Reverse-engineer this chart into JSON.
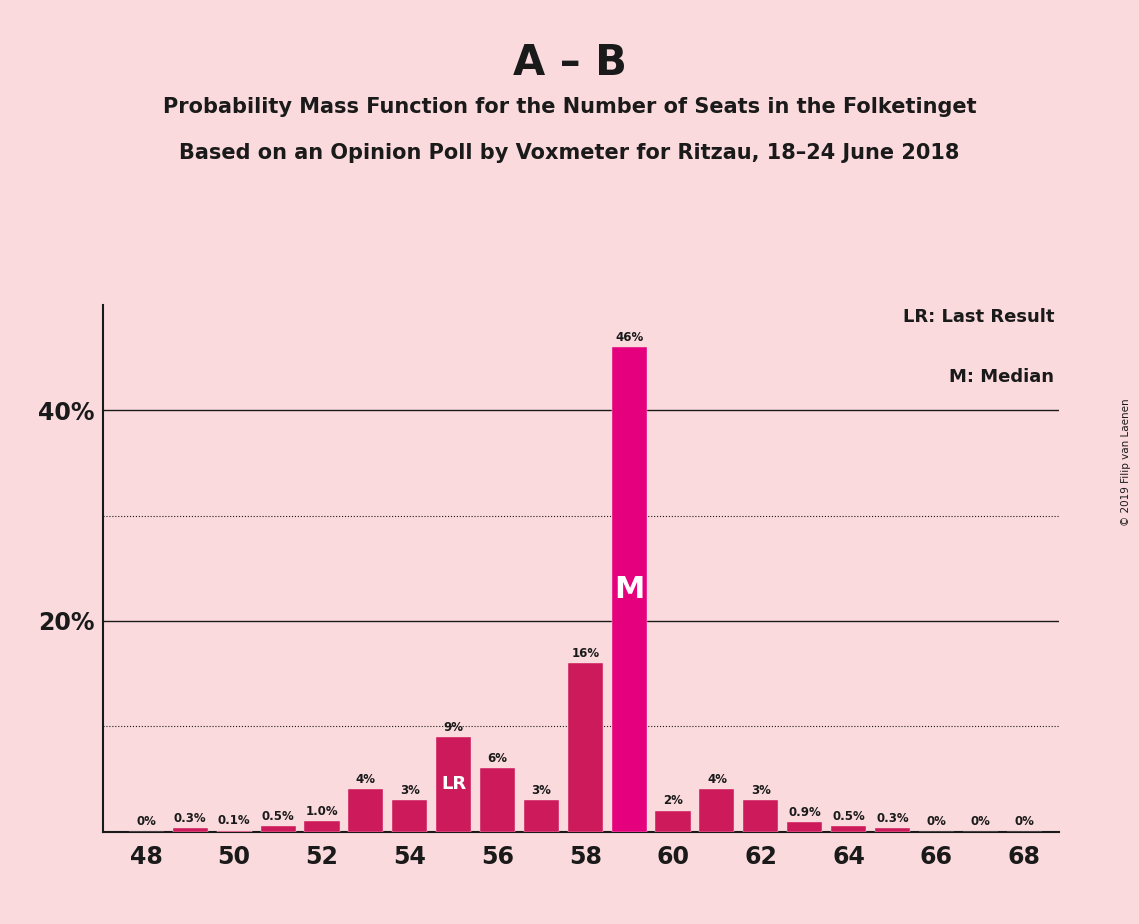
{
  "title_main": "A – B",
  "subtitle1": "Probability Mass Function for the Number of Seats in the Folketinget",
  "subtitle2": "Based on an Opinion Poll by Voxmeter for Ritzau, 18–24 June 2018",
  "copyright": "© 2019 Filip van Laenen",
  "legend_lr": "LR: Last Result",
  "legend_m": "M: Median",
  "seats": [
    48,
    49,
    50,
    51,
    52,
    53,
    54,
    55,
    56,
    57,
    58,
    59,
    60,
    61,
    62,
    63,
    64,
    65,
    66,
    67,
    68
  ],
  "values": [
    0.0,
    0.3,
    0.1,
    0.5,
    1.0,
    4.0,
    3.0,
    9.0,
    6.0,
    3.0,
    16.0,
    46.0,
    2.0,
    4.0,
    3.0,
    0.9,
    0.5,
    0.3,
    0.0,
    0.0,
    0.0
  ],
  "labels": [
    "0%",
    "0.3%",
    "0.1%",
    "0.5%",
    "1.0%",
    "4%",
    "3%",
    "9%",
    "6%",
    "3%",
    "16%",
    "46%",
    "2%",
    "4%",
    "3%",
    "0.9%",
    "0.5%",
    "0.3%",
    "0%",
    "0%",
    "0%"
  ],
  "lr_seat": 55,
  "median_seat": 59,
  "color_normal": "#CC1A5A",
  "color_median": "#E5007D",
  "color_lr_label": "#FFFFFF",
  "color_m_label": "#FFFFFF",
  "background_color": "#FADADD",
  "ylim": [
    0,
    50
  ],
  "solid_gridlines": [
    20,
    40
  ],
  "dotted_gridlines": [
    10,
    30
  ],
  "xtick_positions": [
    48,
    50,
    52,
    54,
    56,
    58,
    60,
    62,
    64,
    66,
    68
  ],
  "title_fontsize": 30,
  "subtitle_fontsize": 15,
  "bar_width": 0.8,
  "xlim_left": 47.0,
  "xlim_right": 68.8
}
